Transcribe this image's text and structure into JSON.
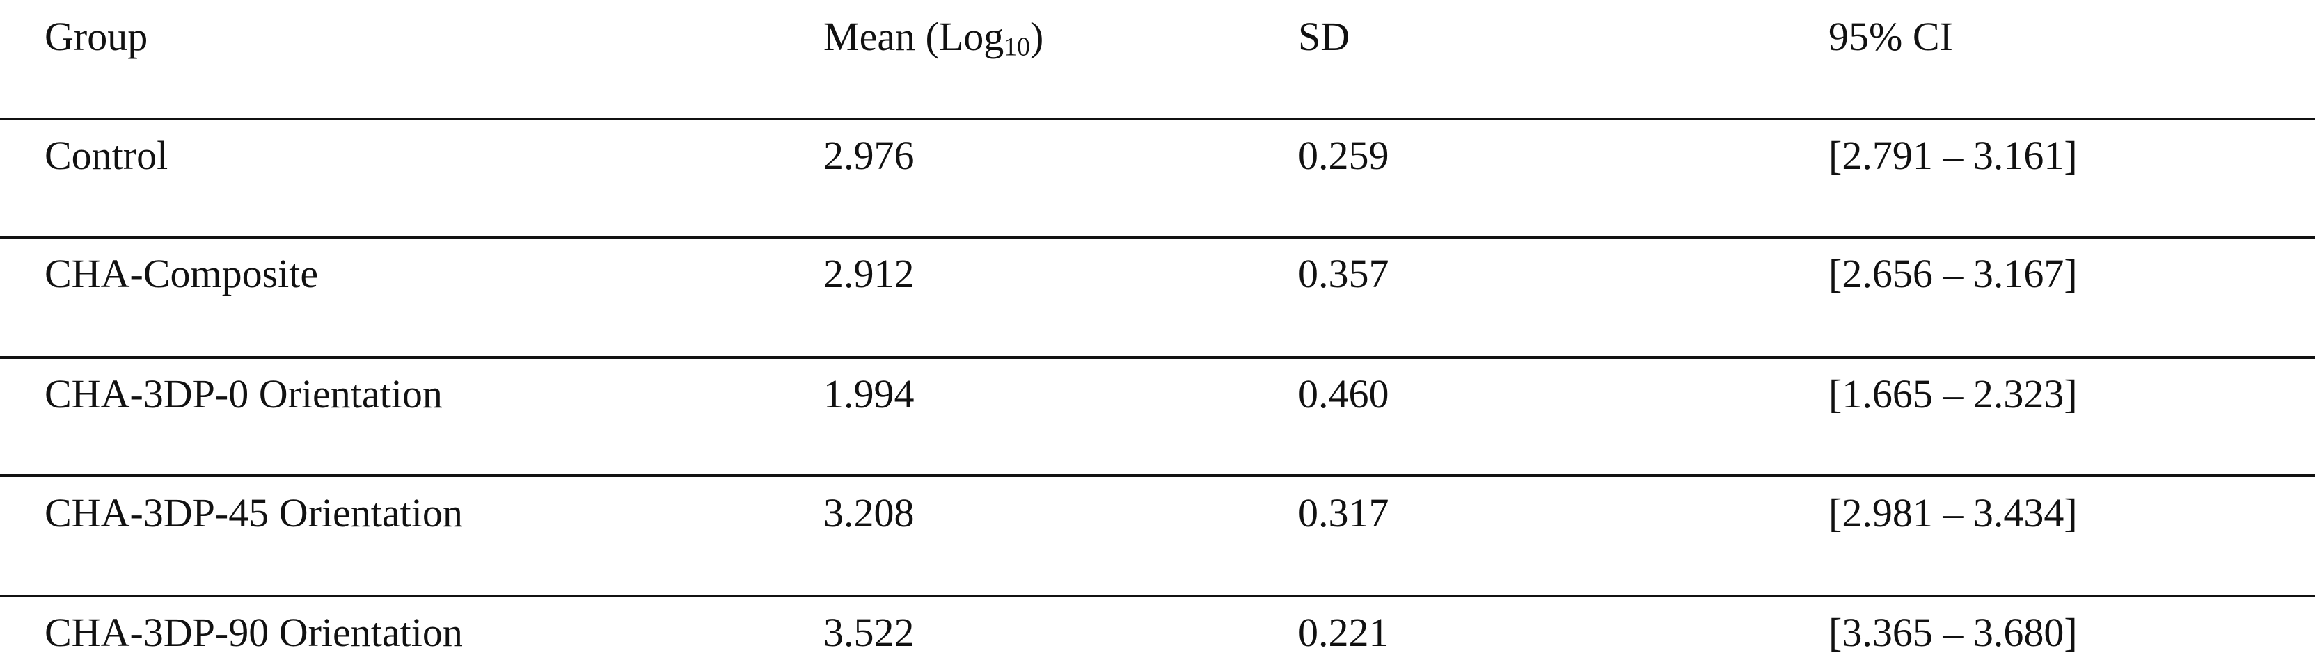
{
  "table": {
    "headers": [
      "Group",
      {
        "text": "Mean (Log",
        "subscript": "10",
        "close": ")"
      },
      "SD",
      "95% CI"
    ],
    "rows": [
      [
        "Control",
        "2.976",
        "0.259",
        "[2.791 – 3.161]"
      ],
      [
        "CHA-Composite",
        "2.912",
        "0.357",
        "[2.656 – 3.167]"
      ],
      [
        "CHA-3DP-0 Orientation",
        "1.994",
        "0.460",
        "[1.665 – 2.323]"
      ],
      [
        "CHA-3DP-45 Orientation",
        "3.208",
        "0.317",
        "[2.981 – 3.434]"
      ],
      [
        "CHA-3DP-90 Orientation",
        "3.522",
        "0.221",
        "[3.365 – 3.680]"
      ]
    ]
  }
}
